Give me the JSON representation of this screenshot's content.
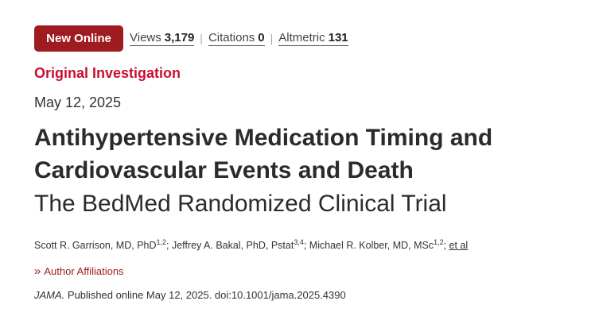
{
  "metrics_bar": {
    "badge": "New Online",
    "views_label": "Views",
    "views_count": "3,179",
    "citations_label": "Citations",
    "citations_count": "0",
    "altmetric_label": "Altmetric",
    "altmetric_count": "131",
    "separator": "|"
  },
  "article": {
    "type": "Original Investigation",
    "date": "May 12, 2025",
    "title": "Antihypertensive Medication Timing and Cardiovascular Events and Death",
    "subtitle": "The BedMed Randomized Clinical Trial"
  },
  "authors": [
    {
      "name": "Scott R. Garrison, MD, PhD",
      "sup": "1,2",
      "delim": "; "
    },
    {
      "name": "Jeffrey A. Bakal, PhD, Pstat",
      "sup": "3,4",
      "delim": "; "
    },
    {
      "name": "Michael R. Kolber, MD, MSc",
      "sup": "1,2",
      "delim": "; "
    }
  ],
  "et_al": "et al",
  "affiliations_toggle": {
    "label": "Author Affiliations",
    "icon": "double-chevron-right-icon"
  },
  "citation": {
    "journal": "JAMA.",
    "text": " Published online May 12, 2025. doi:10.1001/jama.2025.4390"
  },
  "colors": {
    "badge": "#9e1b1f",
    "article_type": "#c8102e",
    "link_red": "#9e1b1f"
  }
}
